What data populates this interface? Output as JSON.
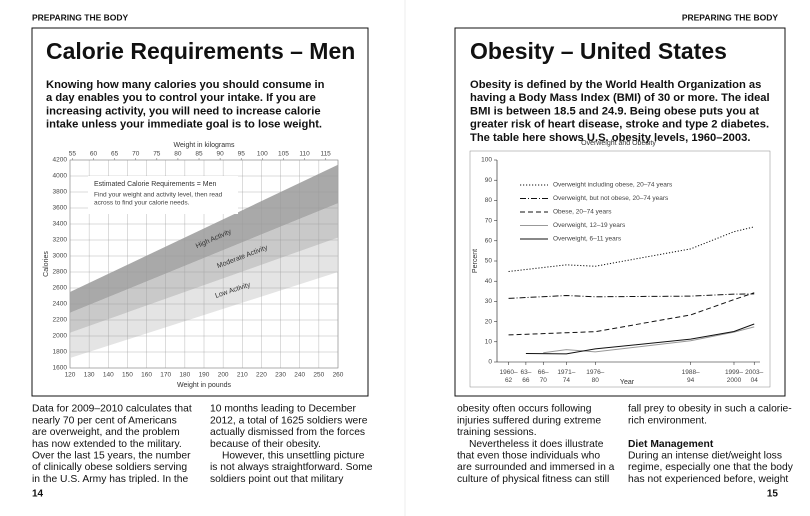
{
  "left_page": {
    "running_head": "PREPARING THE BODY",
    "title": "Calorie Requirements – Men",
    "intro": [
      "Knowing how many calories you should consume in",
      "a day enables you to control your intake. If you are",
      "increasing activity, you will need to increase calorie",
      "intake unless your immediate goal is to lose weight."
    ],
    "columns": [
      [
        "Data for 2009–2010 calculates that",
        "nearly 70 per cent of Americans",
        "are overweight, and the problem",
        "has now extended to the military.",
        "Over the last 15 years, the number",
        "of clinically obese soldiers serving",
        "in the U.S. Army has tripled. In the"
      ],
      [
        "10 months leading to December",
        "2012, a total of 1625 soldiers were",
        "actually dismissed from the forces",
        "because of their obesity.",
        "However, this unsettling picture",
        "is not always straightforward. Some",
        "soldiers point out that military"
      ]
    ],
    "page_number": "14"
  },
  "right_page": {
    "running_head": "PREPARING THE BODY",
    "title": "Obesity – United States",
    "intro": [
      "Obesity is defined by the World Health Organization as",
      "having a Body Mass Index (BMI) of 30 or more. The ideal",
      "BMI is between 18.5 and 24.9. Being obese puts you at",
      "greater risk of heart disease, stroke and type 2 diabetes.",
      "The table here shows U.S. obesity levels, 1960–2003."
    ],
    "columns": [
      [
        "obesity often occurs following",
        "injuries suffered during extreme",
        "training sessions.",
        "Nevertheless it does illustrate",
        "that even those individuals who",
        "are surrounded and immersed in a",
        "culture of physical fitness can still"
      ],
      [
        "fall prey to obesity in such a calorie-",
        "rich environment."
      ]
    ],
    "subheading": "Diet Management",
    "after_heading": [
      "During an intense diet/weight loss",
      "regime, especially one that the body",
      "has not experienced before, weight"
    ],
    "page_number": "15"
  },
  "chart_data": [
    {
      "type": "area",
      "title": "Estimated Calorie Requirements = Men",
      "note": [
        "Find your weight and activity level, then read",
        "across to find your calorie needs."
      ],
      "xlabel": "Weight in pounds",
      "x2label": "Weight in kilograms",
      "ylabel": "Calories",
      "x": [
        120,
        260
      ],
      "xlim": [
        120,
        260
      ],
      "xticks": [
        120,
        130,
        140,
        150,
        160,
        170,
        180,
        190,
        200,
        210,
        220,
        230,
        240,
        250,
        260
      ],
      "x2lim": [
        54.43,
        117.93
      ],
      "x2ticks": [
        55,
        60,
        65,
        70,
        75,
        80,
        85,
        90,
        95,
        100,
        105,
        110,
        115
      ],
      "ylim": [
        1600,
        4200
      ],
      "yticks": [
        1600,
        1800,
        2000,
        2200,
        2400,
        2600,
        2800,
        3000,
        3200,
        3400,
        3600,
        3800,
        4000,
        4200
      ],
      "grid": true,
      "series": [
        {
          "name": "Low Activity",
          "color": "#e4e4e4",
          "lower": [
            1725,
            2800
          ],
          "upper": [
            2040,
            3230
          ]
        },
        {
          "name": "Moderate Activity",
          "color": "#c9c9c9",
          "lower": [
            2040,
            3230
          ],
          "upper": [
            2290,
            3660
          ]
        },
        {
          "name": "High Activity",
          "color": "#a9a9a9",
          "lower": [
            2290,
            3660
          ],
          "upper": [
            2550,
            4140
          ]
        }
      ]
    },
    {
      "type": "line",
      "title": "Overweight and Obesity",
      "xlabel": "Year",
      "ylabel": "Percent",
      "xlim": [
        1959,
        2004.5
      ],
      "xticks": [
        {
          "value": 1961,
          "label": "1960–62"
        },
        {
          "value": 1964,
          "label": "63–66"
        },
        {
          "value": 1967,
          "label": "66–70"
        },
        {
          "value": 1971,
          "label": "1971–74"
        },
        {
          "value": 1976,
          "label": "1976–80"
        },
        {
          "value": 1992.5,
          "label": "1988–94"
        },
        {
          "value": 2000,
          "label": "1999–2000"
        },
        {
          "value": 2003.5,
          "label": "2003–04"
        }
      ],
      "ylim": [
        0,
        100
      ],
      "yticks": [
        0,
        10,
        20,
        30,
        40,
        50,
        60,
        70,
        80,
        90,
        100
      ],
      "legend": "upper left",
      "series": [
        {
          "name": "Overweight including obese, 20–74 years",
          "color": "#111111",
          "dash": "dotted",
          "x": [
            1961,
            1971,
            1976,
            1992.5,
            2000,
            2003.5
          ],
          "values": [
            44.8,
            48.1,
            47.4,
            56,
            64.5,
            66.9
          ]
        },
        {
          "name": "Overweight, but not obese, 20–74 years",
          "color": "#111111",
          "dash": "dashdot",
          "x": [
            1961,
            1971,
            1976,
            1992.5,
            2000,
            2003.5
          ],
          "values": [
            31.5,
            32.9,
            32.3,
            32.6,
            33.6,
            33.7
          ]
        },
        {
          "name": "Obese, 20–74 years",
          "color": "#111111",
          "dash": "dashed",
          "x": [
            1961,
            1971,
            1976,
            1992.5,
            2000,
            2003.5
          ],
          "values": [
            13.4,
            14.5,
            15,
            23.3,
            30.9,
            34.3
          ]
        },
        {
          "name": "Overweight, 12–19 years",
          "color": "#999999",
          "dash": "solid",
          "x": [
            1967,
            1971,
            1976,
            1992.5,
            2000,
            2003.5
          ],
          "values": [
            4.6,
            6.1,
            5,
            10.5,
            14.8,
            17.4
          ]
        },
        {
          "name": "Overweight, 6–11 years",
          "color": "#111111",
          "dash": "solid",
          "x": [
            1964,
            1971,
            1976,
            1992.5,
            2000,
            2003.5
          ],
          "values": [
            4.2,
            4,
            6.5,
            11.3,
            15.1,
            18.8
          ]
        }
      ]
    }
  ]
}
